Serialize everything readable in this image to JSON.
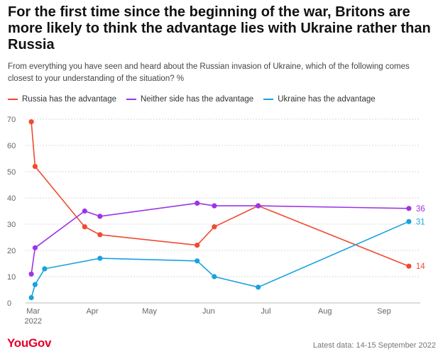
{
  "header": {
    "title": "For the first time since the beginning of the war, Britons are more likely to think the advantage lies with Ukraine rather than Russia",
    "subtitle": "From everything you have seen and heard about the Russian invasion of Ukraine, which of the following comes closest to your understanding of the situation? %"
  },
  "footer": {
    "logo": "YouGov",
    "note": "Latest data: 14-15 September 2022"
  },
  "colors": {
    "russia": "#f04a31",
    "neither": "#9b35e6",
    "ukraine": "#1aa2dd",
    "grid": "#d9d9d9",
    "axis_text": "#666666"
  },
  "chart_data": {
    "type": "line",
    "title": "For the first time since the beginning of the war, Britons are more likely to think the advantage lies with Ukraine rather than Russia",
    "xlabel": "",
    "ylabel": "%",
    "ylim": [
      0,
      70
    ],
    "yticks": [
      0,
      10,
      20,
      30,
      40,
      50,
      60,
      70
    ],
    "xticks": [
      {
        "label": "Mar",
        "day": 0
      },
      {
        "label": "Apr",
        "day": 31
      },
      {
        "label": "May",
        "day": 61
      },
      {
        "label": "Jun",
        "day": 92
      },
      {
        "label": "Jul",
        "day": 122
      },
      {
        "label": "Aug",
        "day": 153
      },
      {
        "label": "Sep",
        "day": 184
      }
    ],
    "year_label": "2022",
    "xlim": [
      -4,
      203
    ],
    "grid": true,
    "legend_position": "top-left",
    "survey_days": [
      -1,
      1,
      6,
      27,
      35,
      86,
      95,
      118,
      197
    ],
    "series": [
      {
        "key": "russia",
        "name": "Russia has the advantage",
        "values": [
          69,
          52,
          null,
          29,
          26,
          22,
          29,
          37,
          14
        ],
        "end_label": "14"
      },
      {
        "key": "neither",
        "name": "Neither side has the advantage",
        "values": [
          11,
          21,
          null,
          35,
          33,
          38,
          37,
          37,
          36
        ],
        "end_label": "36"
      },
      {
        "key": "ukraine",
        "name": "Ukraine has the advantage",
        "values": [
          2,
          7,
          13,
          null,
          17,
          16,
          10,
          6,
          31
        ],
        "end_label": "31"
      }
    ]
  }
}
